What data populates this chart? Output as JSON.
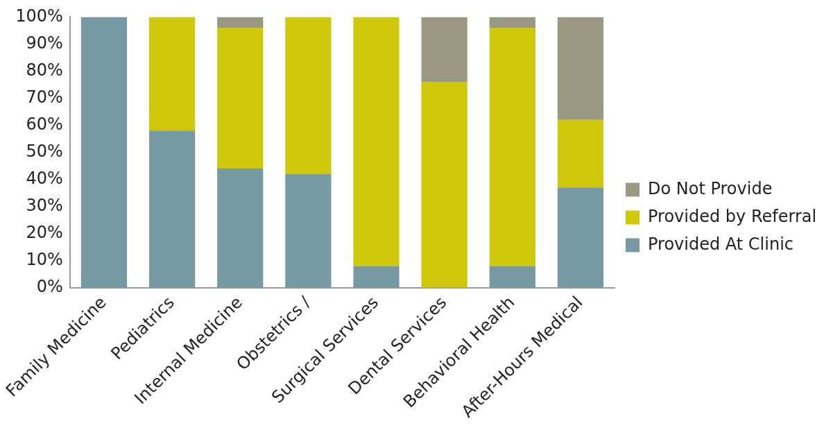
{
  "chart_data": {
    "type": "bar",
    "stacked": true,
    "categories": [
      "Family Medicine",
      "Pediatrics",
      "Internal Medicine",
      "Obstetrics /",
      "Surgical Services",
      "Dental Services",
      "Behavioral Health",
      "After-Hours Medical"
    ],
    "series": [
      {
        "name": "Provided At Clinic",
        "color": "#7799a4",
        "values": [
          100,
          58,
          44,
          42,
          8,
          0,
          8,
          37
        ]
      },
      {
        "name": "Provided by Referral",
        "color": "#cfc80a",
        "values": [
          0,
          42,
          52,
          58,
          92,
          76,
          88,
          25
        ]
      },
      {
        "name": "Do Not Provide",
        "color": "#9a9880",
        "values": [
          0,
          0,
          4,
          0,
          0,
          24,
          4,
          38
        ]
      }
    ],
    "ylim": [
      0,
      100
    ],
    "yticks": [
      {
        "value": 0,
        "label": "0%"
      },
      {
        "value": 10,
        "label": "10%"
      },
      {
        "value": 20,
        "label": "20%"
      },
      {
        "value": 30,
        "label": "30%"
      },
      {
        "value": 40,
        "label": "40%"
      },
      {
        "value": 50,
        "label": "50%"
      },
      {
        "value": 60,
        "label": "60%"
      },
      {
        "value": 70,
        "label": "70%"
      },
      {
        "value": 80,
        "label": "80%"
      },
      {
        "value": 90,
        "label": "90%"
      },
      {
        "value": 100,
        "label": "100%"
      }
    ],
    "grid": false,
    "legend": "right"
  }
}
